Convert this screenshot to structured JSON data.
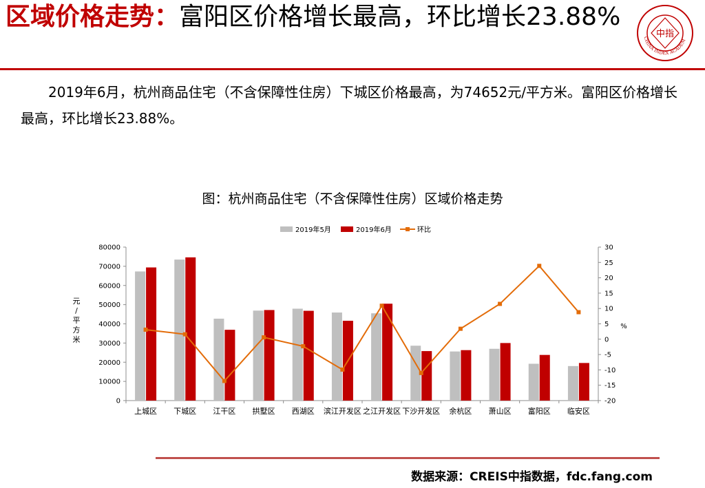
{
  "header": {
    "title_highlight": "区域价格走势：",
    "title_rest": "富阳区价格增长最高，环比增长23.88%",
    "logo_text": "中指",
    "logo_ring_text": "CHINA INDEX ACADEMY"
  },
  "body_text": "2019年6月，杭州商品住宅（不含保障性住房）下城区价格最高，为74652元/平方米。富阳区价格增长最高，环比增长23.88%。",
  "chart_title": "图：杭州商品住宅（不含保障性住房）区域价格走势",
  "source": "数据来源：CREIS中指数据，fdc.fang.com",
  "colors": {
    "accent": "#c00000",
    "may": "#bfbfbf",
    "june": "#c00000",
    "mom": "#e36c09",
    "rule": "#c0504d"
  },
  "chart_data": {
    "type": "bar",
    "categories": [
      "上城区",
      "下城区",
      "江干区",
      "拱墅区",
      "西湖区",
      "滨江开发区",
      "之江开发区",
      "下沙开发区",
      "余杭区",
      "萧山区",
      "富阳区",
      "临安区"
    ],
    "series": [
      {
        "name": "2019年5月",
        "type": "bar",
        "axis": "left",
        "values": [
          67300,
          73500,
          42700,
          46900,
          47900,
          45900,
          45500,
          28600,
          25600,
          27000,
          19200,
          18000
        ]
      },
      {
        "name": "2019年6月",
        "type": "bar",
        "axis": "left",
        "values": [
          69400,
          74652,
          36900,
          47200,
          46800,
          41600,
          50500,
          25800,
          26300,
          30000,
          23800,
          19600
        ]
      },
      {
        "name": "环比",
        "type": "line",
        "axis": "right",
        "values": [
          3.1,
          1.6,
          -13.6,
          0.6,
          -2.3,
          -9.9,
          10.9,
          -11.0,
          3.4,
          11.5,
          23.88,
          8.8
        ]
      }
    ],
    "ylabel": "元/平方米",
    "ylim": [
      0,
      80000
    ],
    "yticks": [
      "0",
      "10000",
      "20000",
      "30000",
      "40000",
      "50000",
      "60000",
      "70000",
      "80000"
    ],
    "y2label": "%",
    "y2lim": [
      -20,
      30
    ],
    "y2ticks": [
      "-20",
      "-15",
      "-10",
      "-5",
      "0",
      "5",
      "10",
      "15",
      "20",
      "25",
      "30"
    ],
    "ylabel_chars": [
      "元",
      "/",
      "平",
      "方",
      "米"
    ],
    "legend_position": "top-center",
    "grid": false
  }
}
